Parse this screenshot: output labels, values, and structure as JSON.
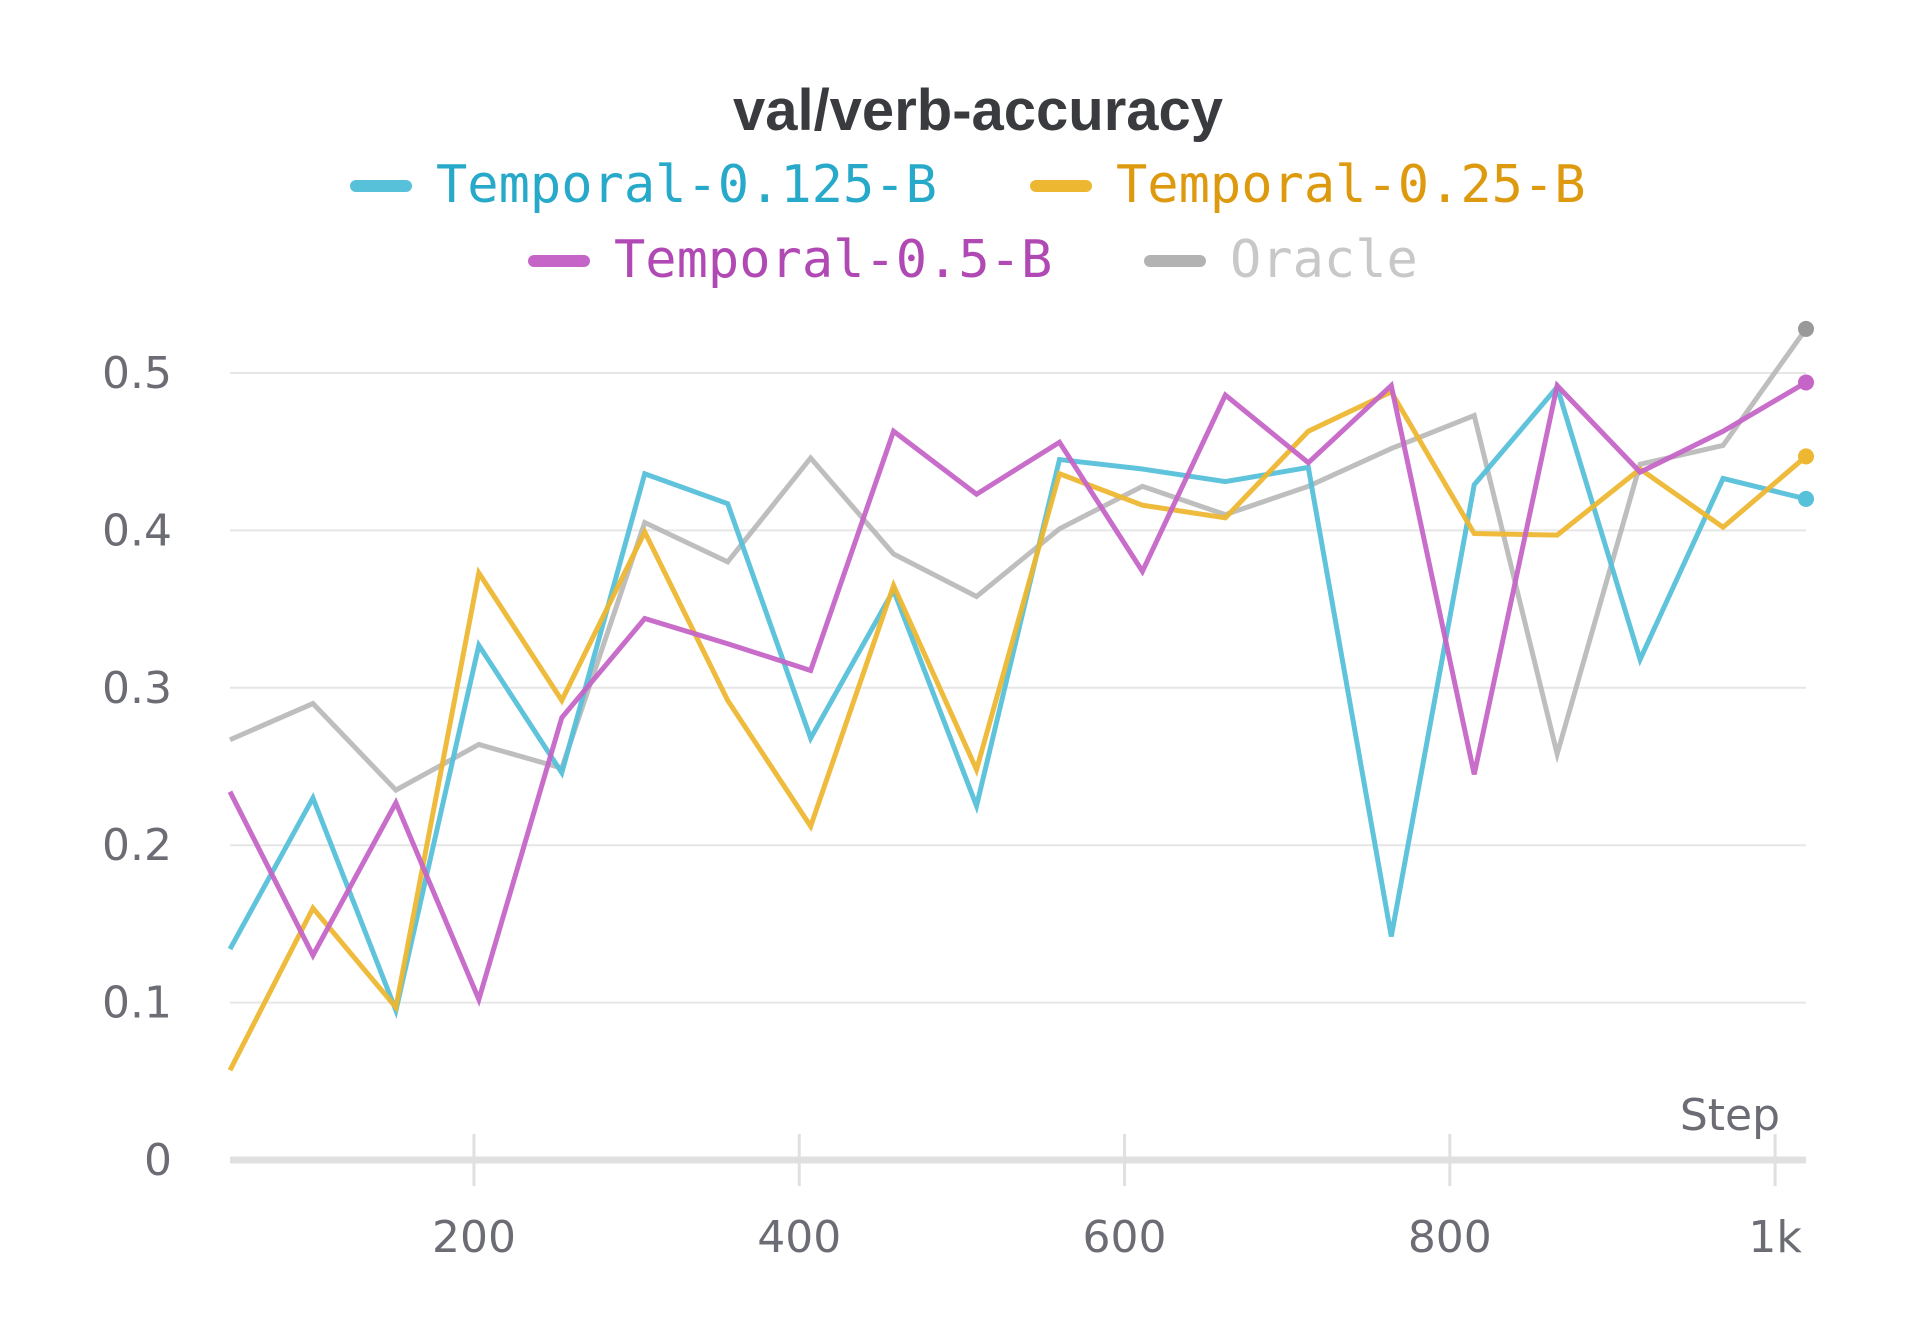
{
  "chart_data": {
    "type": "line",
    "title": "val/verb-accuracy",
    "xlabel": "Step",
    "ylabel": "",
    "xlim": [
      0,
      1030
    ],
    "ylim": [
      0,
      0.53
    ],
    "xticks": [
      200,
      400,
      600,
      800,
      1000
    ],
    "xtick_labels": [
      "200",
      "400",
      "600",
      "800",
      "1k"
    ],
    "yticks": [
      0,
      0.1,
      0.2,
      0.3,
      0.4,
      0.5
    ],
    "ytick_labels": [
      "0",
      "0.1",
      "0.2",
      "0.3",
      "0.4",
      "0.5"
    ],
    "grid": true,
    "legend_position": "top-center",
    "x": [
      50,
      101,
      152,
      203,
      254,
      305,
      356,
      407,
      458,
      509,
      560,
      611,
      662,
      713,
      764,
      815,
      866,
      917,
      968,
      1019
    ],
    "series": [
      {
        "name": "Temporal-0.125-B",
        "color": "#56c1d9",
        "text_color": "#27a9c9",
        "values": [
          0.134,
          0.23,
          0.095,
          0.327,
          0.246,
          0.436,
          0.417,
          0.268,
          0.362,
          0.225,
          0.445,
          0.439,
          0.431,
          0.44,
          0.142,
          0.429,
          0.491,
          0.318,
          0.433,
          0.42
        ]
      },
      {
        "name": "Temporal-0.25-B",
        "color": "#edb732",
        "text_color": "#de9a0f",
        "values": [
          0.057,
          0.16,
          0.097,
          0.373,
          0.292,
          0.399,
          0.292,
          0.212,
          0.365,
          0.248,
          0.436,
          0.416,
          0.408,
          0.463,
          0.488,
          0.398,
          0.397,
          0.439,
          0.402,
          0.447
        ]
      },
      {
        "name": "Temporal-0.5-B",
        "color": "#c565c7",
        "text_color": "#b149b4",
        "values": [
          0.234,
          0.13,
          0.227,
          0.102,
          0.281,
          0.344,
          0.328,
          0.311,
          0.463,
          0.423,
          0.456,
          0.374,
          0.486,
          0.443,
          0.492,
          0.245,
          0.492,
          0.437,
          0.463,
          0.494
        ]
      },
      {
        "name": "Oracle",
        "color": "#b3b3b3",
        "text_color": "#c8c8c8",
        "values": [
          0.267,
          0.29,
          0.235,
          0.264,
          0.249,
          0.405,
          0.38,
          0.446,
          0.385,
          0.358,
          0.401,
          0.428,
          0.41,
          0.428,
          0.452,
          0.473,
          0.258,
          0.442,
          0.454,
          0.528
        ]
      }
    ]
  }
}
